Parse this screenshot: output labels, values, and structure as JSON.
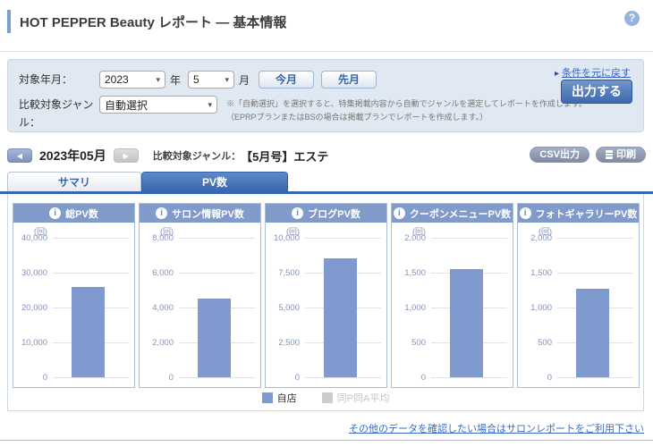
{
  "header": {
    "title": "HOT PEPPER Beauty レポート ― 基本情報",
    "help_icon": "?"
  },
  "filters": {
    "target_month_label": "対象年月：",
    "year_value": "2023",
    "year_suffix": "年",
    "month_value": "5",
    "month_suffix": "月",
    "this_month_button": "今月",
    "last_month_button": "先月",
    "reset_link": "条件を元に戻す",
    "genre_label": "比較対象ジャンル：",
    "genre_value": "自動選択",
    "note_line1": "※「自動選択」を選択すると、特集掲載内容から自動でジャンルを選定してレポートを作成します。",
    "note_line2": "（EPRPプランまたはBSの場合は掲載プランでレポートを作成します。）",
    "output_button": "出力する"
  },
  "report_nav": {
    "current_month": "2023年05月",
    "genre_label": "比較対象ジャンル：",
    "genre_value": "【5月号】エステ",
    "csv_button": "CSV出力",
    "print_button": "印刷"
  },
  "tabs": [
    {
      "label": "サマリ",
      "active": false
    },
    {
      "label": "PV数",
      "active": true
    }
  ],
  "chart_data": [
    {
      "type": "bar",
      "title": "総PV数",
      "unit": "(回)",
      "ylim": [
        0,
        40000
      ],
      "yticks": [
        "40,000",
        "30,000",
        "20,000",
        "10,000",
        "0"
      ],
      "series": [
        {
          "name": "自店",
          "value": 26000
        }
      ]
    },
    {
      "type": "bar",
      "title": "サロン情報PV数",
      "unit": "(回)",
      "ylim": [
        0,
        8000
      ],
      "yticks": [
        "8,000",
        "6,000",
        "4,000",
        "2,000",
        "0"
      ],
      "series": [
        {
          "name": "自店",
          "value": 4500
        }
      ]
    },
    {
      "type": "bar",
      "title": "ブログPV数",
      "unit": "(回)",
      "ylim": [
        0,
        10000
      ],
      "yticks": [
        "10,000",
        "7,500",
        "5,000",
        "2,500",
        "0"
      ],
      "series": [
        {
          "name": "自店",
          "value": 8500
        }
      ]
    },
    {
      "type": "bar",
      "title": "クーポンメニューPV数",
      "unit": "(回)",
      "ylim": [
        0,
        2000
      ],
      "yticks": [
        "2,000",
        "1,500",
        "1,000",
        "500",
        "0"
      ],
      "series": [
        {
          "name": "自店",
          "value": 1550
        }
      ]
    },
    {
      "type": "bar",
      "title": "フォトギャラリーPV数",
      "unit": "(回)",
      "ylim": [
        0,
        2000
      ],
      "yticks": [
        "2,000",
        "1,500",
        "1,000",
        "500",
        "0"
      ],
      "series": [
        {
          "name": "自店",
          "value": 1270
        }
      ]
    }
  ],
  "legend": {
    "items": [
      {
        "label": "自店",
        "color": "#7e9ace",
        "muted": false
      },
      {
        "label": "同P同A平均",
        "color": "#cccccc",
        "muted": true
      }
    ]
  },
  "footer_link": "その他のデータを確認したい場合はサロンレポートをご利用下さい",
  "colors": {
    "accent_blue": "#3767b2",
    "panel_header_blue": "#809aca",
    "bar_blue": "#7e9ace",
    "filter_bg": "#e0e8f2"
  }
}
